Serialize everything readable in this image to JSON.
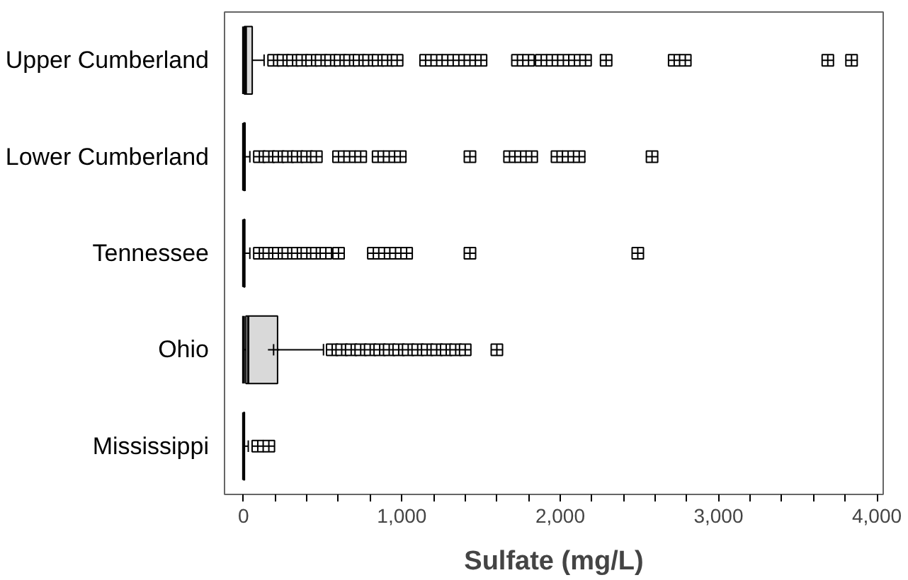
{
  "chart_data": {
    "type": "box",
    "orientation": "horizontal",
    "xlabel": "Sulfate (mg/L)",
    "categories": [
      "Upper Cumberland",
      "Lower Cumberland",
      "Tennessee",
      "Ohio",
      "Mississippi"
    ],
    "xlim": [
      -120,
      4040
    ],
    "xticks": [
      {
        "value": 0,
        "label": "0"
      },
      {
        "value": 200,
        "label": null
      },
      {
        "value": 400,
        "label": null
      },
      {
        "value": 600,
        "label": null
      },
      {
        "value": 800,
        "label": null
      },
      {
        "value": 1000,
        "label": "1,000"
      },
      {
        "value": 1200,
        "label": null
      },
      {
        "value": 1400,
        "label": null
      },
      {
        "value": 1600,
        "label": null
      },
      {
        "value": 1800,
        "label": null
      },
      {
        "value": 2000,
        "label": "2,000"
      },
      {
        "value": 2200,
        "label": null
      },
      {
        "value": 2400,
        "label": null
      },
      {
        "value": 2600,
        "label": null
      },
      {
        "value": 2800,
        "label": null
      },
      {
        "value": 3000,
        "label": "3,000"
      },
      {
        "value": 3200,
        "label": null
      },
      {
        "value": 3400,
        "label": null
      },
      {
        "value": 3600,
        "label": null
      },
      {
        "value": 3800,
        "label": null
      },
      {
        "value": 4000,
        "label": "4,000"
      }
    ],
    "grid": false,
    "marker": "square",
    "color": "#d9d9d9",
    "boxes": [
      {
        "low": 0,
        "q1": 5,
        "median": 15,
        "q3": 55,
        "high": 130,
        "outliers": [
          190,
          250,
          310,
          370,
          430,
          490,
          550,
          610,
          670,
          730,
          790,
          850,
          910,
          970,
          1150,
          1220,
          1290,
          1360,
          1430,
          1500,
          1730,
          1800,
          1880,
          1950,
          2020,
          2090,
          2160,
          2290,
          2720,
          2790,
          3690,
          3840
        ]
      },
      {
        "low": 0,
        "q1": 2,
        "median": 5,
        "q3": 10,
        "high": 40,
        "outliers": [
          100,
          160,
          220,
          280,
          340,
          400,
          460,
          600,
          670,
          740,
          850,
          920,
          990,
          1430,
          1680,
          1750,
          1820,
          1980,
          2050,
          2120,
          2580
        ]
      },
      {
        "low": 0,
        "q1": 2,
        "median": 4,
        "q3": 8,
        "high": 40,
        "outliers": [
          100,
          160,
          220,
          280,
          340,
          400,
          460,
          520,
          600,
          820,
          890,
          960,
          1030,
          1430,
          2490
        ]
      },
      {
        "low": 0,
        "q1": 15,
        "median": 30,
        "q3": 215,
        "high": 505,
        "mean": 190,
        "outliers": [
          560,
          620,
          680,
          740,
          800,
          860,
          920,
          980,
          1040,
          1100,
          1160,
          1220,
          1280,
          1340,
          1400,
          1600
        ]
      },
      {
        "low": 0,
        "q1": 1,
        "median": 3,
        "q3": 6,
        "high": 30,
        "outliers": [
          90,
          160
        ]
      }
    ]
  }
}
